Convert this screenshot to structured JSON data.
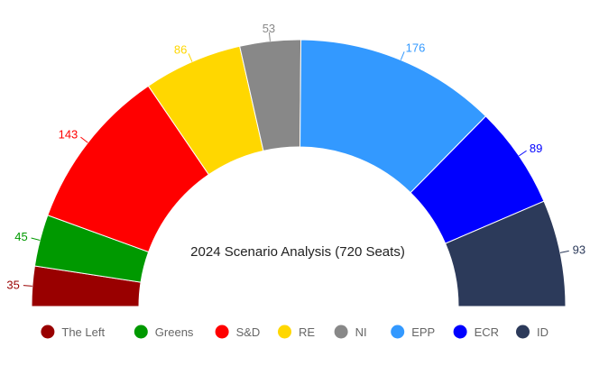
{
  "chart_data": {
    "type": "parliament-semicircle",
    "title": "2024 Scenario Analysis (720 Seats)",
    "total_seats": 720,
    "legend_position": "bottom",
    "slices": [
      {
        "name": "The Left",
        "value": 35,
        "color": "#990000"
      },
      {
        "name": "Greens",
        "value": 45,
        "color": "#009900"
      },
      {
        "name": "S&D",
        "value": 143,
        "color": "#ff0000"
      },
      {
        "name": "RE",
        "value": 86,
        "color": "#ffd700"
      },
      {
        "name": "NI",
        "value": 53,
        "color": "#888888"
      },
      {
        "name": "EPP",
        "value": 176,
        "color": "#3399ff"
      },
      {
        "name": "ECR",
        "value": 89,
        "color": "#0000ff"
      },
      {
        "name": "ID",
        "value": 93,
        "color": "#2c3a5a"
      }
    ]
  }
}
